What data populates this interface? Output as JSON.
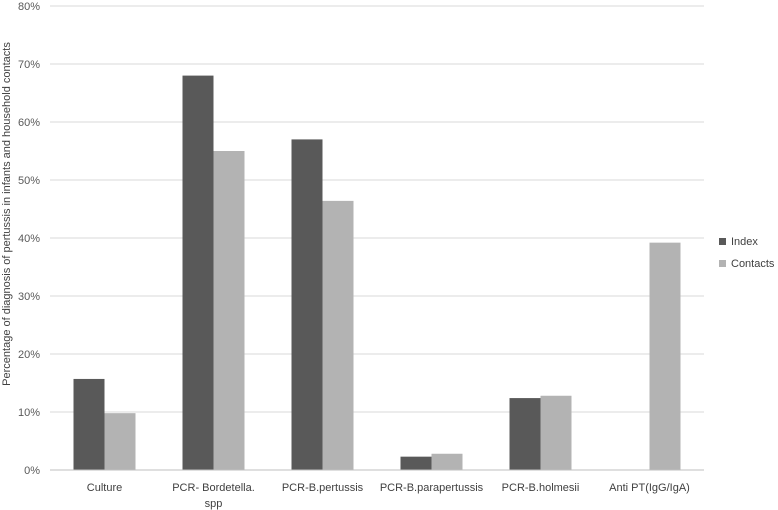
{
  "chart_data": {
    "type": "bar",
    "categories": [
      [
        "Culture"
      ],
      [
        "PCR- Bordetella.",
        "spp"
      ],
      [
        "PCR-B.pertussis"
      ],
      [
        "PCR-B.parapertussis"
      ],
      [
        "PCR-B.holmesii"
      ],
      [
        "Anti PT(IgG/IgA)"
      ]
    ],
    "series": [
      {
        "name": "Index",
        "color": "#595959",
        "values": [
          15.7,
          68,
          57,
          2.3,
          12.4,
          0
        ]
      },
      {
        "name": "Contacts",
        "color": "#b3b3b3",
        "values": [
          9.8,
          55,
          46.4,
          2.8,
          12.8,
          39.2
        ]
      }
    ],
    "ylabel": "Percentage of  diagnosis of pertussis in infants and household contacts",
    "ylim": [
      0,
      80
    ],
    "yticks": [
      0,
      10,
      20,
      30,
      40,
      50,
      60,
      70,
      80
    ],
    "ytick_labels": [
      "0%",
      "10%",
      "20%",
      "30%",
      "40%",
      "50%",
      "60%",
      "70%",
      "80%"
    ],
    "grid": true,
    "legend_position": "right"
  }
}
